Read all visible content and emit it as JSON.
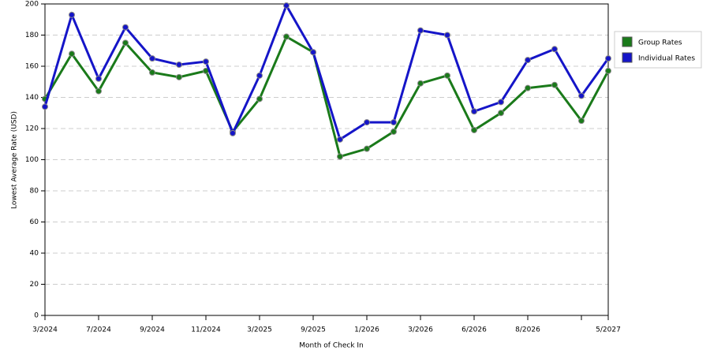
{
  "chart_data": {
    "type": "line",
    "x_label": "Month of Check In",
    "y_label": "Lowest Average Rate (USD)",
    "categories": [
      "3/2024",
      null,
      "7/2024",
      null,
      "9/2024",
      null,
      "11/2024",
      null,
      "3/2025",
      null,
      "9/2025",
      null,
      "1/2026",
      null,
      "3/2026",
      null,
      "6/2026",
      null,
      "8/2026",
      null,
      null,
      "5/2027"
    ],
    "series": [
      {
        "name": "Group Rates",
        "color": "#1a7a1a",
        "values": [
          139,
          168,
          144,
          175,
          156,
          153,
          157,
          118,
          139,
          179,
          169,
          102,
          107,
          118,
          149,
          154,
          119,
          130,
          146,
          148,
          125,
          157
        ]
      },
      {
        "name": "Individual Rates",
        "color": "#1515c8",
        "values": [
          134,
          193,
          152,
          185,
          165,
          161,
          163,
          117,
          154,
          199,
          169,
          113,
          124,
          124,
          183,
          180,
          131,
          137,
          164,
          171,
          141,
          165
        ]
      }
    ],
    "ylim": [
      0,
      200
    ],
    "yticks": [
      0,
      20,
      40,
      60,
      80,
      100,
      120,
      140,
      160,
      180,
      200
    ],
    "grid": true,
    "legend": "right"
  }
}
